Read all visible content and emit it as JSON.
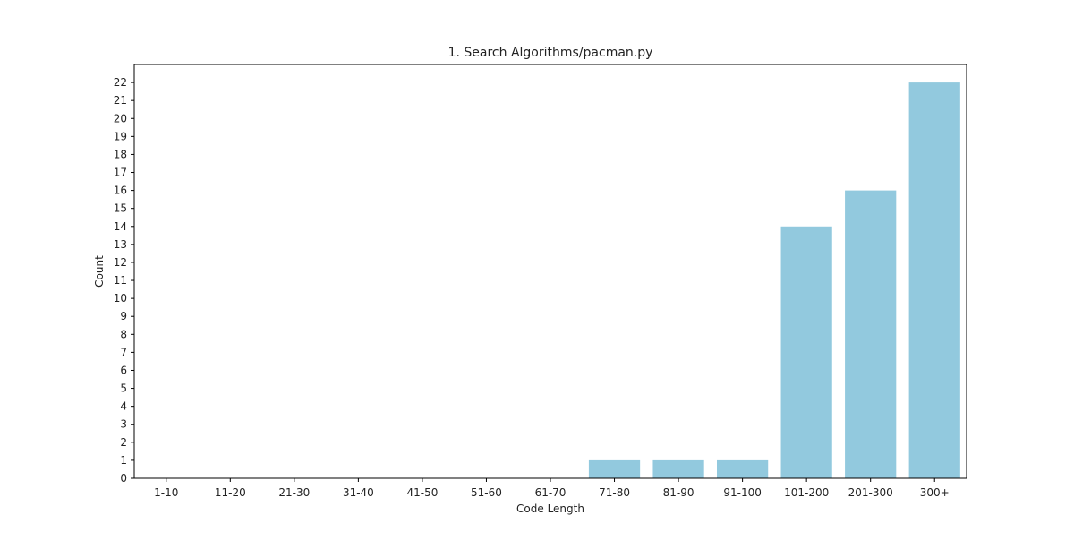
{
  "chart_data": {
    "type": "bar",
    "title": "1. Search Algorithms/pacman.py",
    "xlabel": "Code Length",
    "ylabel": "Count",
    "categories": [
      "1-10",
      "11-20",
      "21-30",
      "31-40",
      "41-50",
      "51-60",
      "61-70",
      "71-80",
      "81-90",
      "91-100",
      "101-200",
      "201-300",
      "300+"
    ],
    "values": [
      0,
      0,
      0,
      0,
      0,
      0,
      0,
      1,
      1,
      1,
      14,
      16,
      22
    ],
    "ylim": [
      0,
      23
    ],
    "yticks": [
      0,
      1,
      2,
      3,
      4,
      5,
      6,
      7,
      8,
      9,
      10,
      11,
      12,
      13,
      14,
      15,
      16,
      17,
      18,
      19,
      20,
      21,
      22
    ],
    "grid": false,
    "legend": "none",
    "bar_color": "#92c9de"
  }
}
